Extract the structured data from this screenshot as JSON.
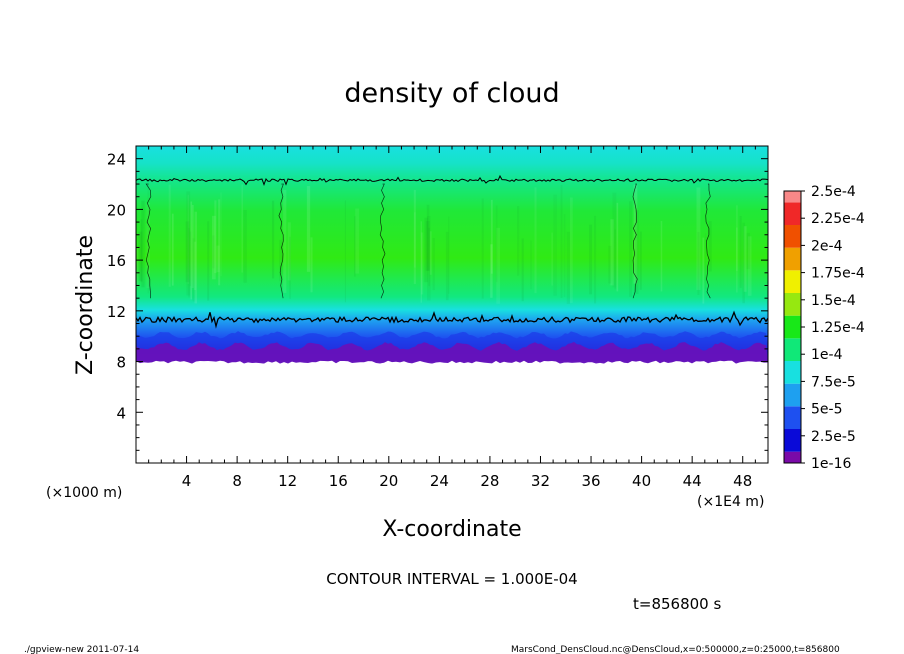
{
  "chart_data": {
    "type": "heatmap",
    "title": "density of cloud",
    "xlabel": "X-coordinate",
    "ylabel": "Z-coordinate",
    "x_unit_left": "(×1000 m)",
    "x_unit_right": "(×1E4 m)",
    "xlim": [
      0,
      50
    ],
    "ylim": [
      0,
      25
    ],
    "x_ticks": [
      4,
      8,
      12,
      16,
      20,
      24,
      28,
      32,
      36,
      40,
      44,
      48
    ],
    "y_ticks": [
      4,
      8,
      12,
      16,
      20,
      24
    ],
    "cloud_base_z": 8,
    "cloud_top_z": 25,
    "contour_levels": [
      {
        "value": "1e-4",
        "mean_z": 11.3
      },
      {
        "value": "1e-4",
        "mean_z": 22.3
      }
    ],
    "colorbar": {
      "labels": [
        "1e-16",
        "2.5e-5",
        "5e-5",
        "7.5e-5",
        "1e-4",
        "1.25e-4",
        "1.5e-4",
        "1.75e-4",
        "2e-4",
        "2.25e-4",
        "2.5e-4"
      ],
      "colors": [
        "#7a0aa8",
        "#0a0ad8",
        "#1e50f0",
        "#1ea0f0",
        "#18e0e0",
        "#10e878",
        "#18e818",
        "#96e810",
        "#f0f000",
        "#f0a000",
        "#f05000",
        "#f02828",
        "#f88888"
      ]
    },
    "contour_interval_text": "CONTOUR INTERVAL = 1.000E-04",
    "time_text": "t=856800 s"
  },
  "footer": {
    "left": "./gpview-new   2011-07-14",
    "right": "MarsCond_DensCloud.nc@DensCloud,x=0:500000,z=0:25000,t=856800"
  }
}
